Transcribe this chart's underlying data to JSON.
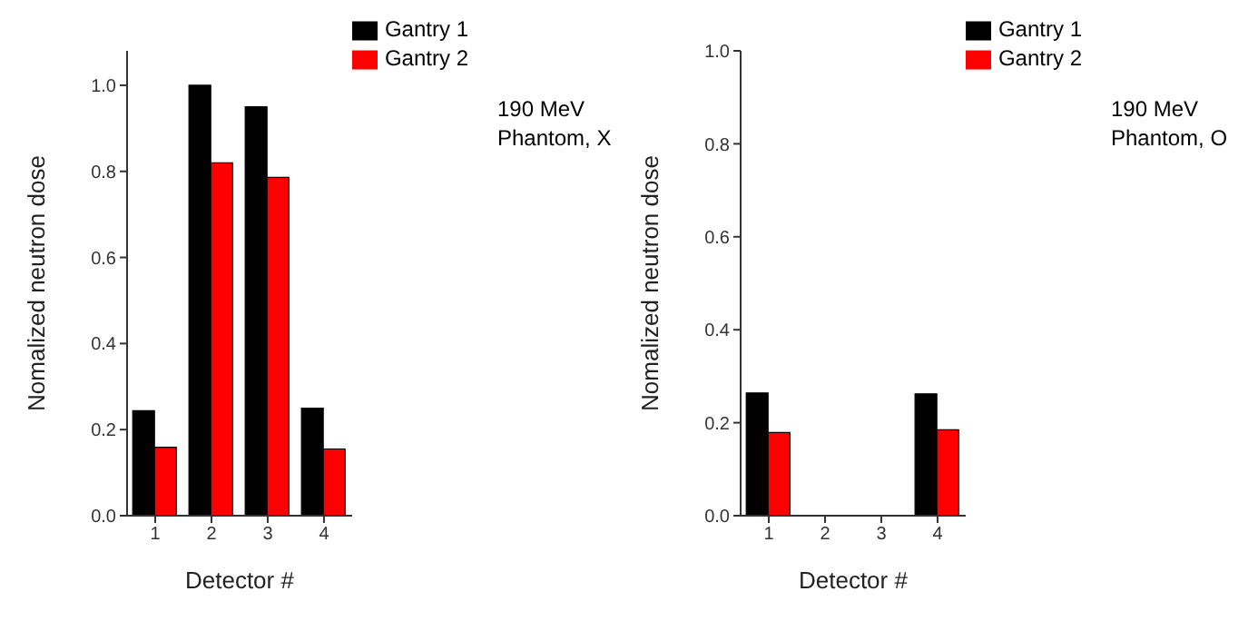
{
  "chart_data": [
    {
      "type": "bar",
      "categories": [
        "1",
        "2",
        "3",
        "4"
      ],
      "xlabel": "Detector #",
      "ylabel": "Nomalized neutron dose",
      "series": [
        {
          "name": "Gantry 1",
          "color": "#000000",
          "values": [
            0.244,
            1.0,
            0.95,
            0.25
          ]
        },
        {
          "name": "Gantry 2",
          "color": "#ff0000",
          "values": [
            0.159,
            0.82,
            0.786,
            0.155
          ]
        }
      ],
      "ylim": [
        0,
        1.08
      ],
      "yticks": [
        {
          "value": 0,
          "label": "0.0"
        },
        {
          "value": 0.2,
          "label": "0.2"
        },
        {
          "value": 0.4,
          "label": "0.4"
        },
        {
          "value": 0.6,
          "label": "0.6"
        },
        {
          "value": 0.8,
          "label": "0.8"
        },
        {
          "value": 1.0,
          "label": "1.0"
        }
      ],
      "legend": "top right",
      "grid": false,
      "annotations": [
        "190 MeV",
        "Phantom, X"
      ]
    },
    {
      "type": "bar",
      "categories": [
        "1",
        "2",
        "3",
        "4"
      ],
      "xlabel": "Detector #",
      "ylabel": "Nomalized neutron dose",
      "series": [
        {
          "name": "Gantry 1",
          "color": "#000000",
          "values": [
            0.264,
            null,
            null,
            0.262
          ]
        },
        {
          "name": "Gantry 2",
          "color": "#ff0000",
          "values": [
            0.179,
            null,
            null,
            0.185
          ]
        }
      ],
      "ylim": [
        0,
        1.0
      ],
      "yticks": [
        {
          "value": 0,
          "label": "0.0"
        },
        {
          "value": 0.2,
          "label": "0.2"
        },
        {
          "value": 0.4,
          "label": "0.4"
        },
        {
          "value": 0.6,
          "label": "0.6"
        },
        {
          "value": 0.8,
          "label": "0.8"
        },
        {
          "value": 1.0,
          "label": "1.0"
        }
      ],
      "legend": "top right",
      "grid": false,
      "annotations": [
        "190 MeV",
        "Phantom, O"
      ]
    }
  ]
}
